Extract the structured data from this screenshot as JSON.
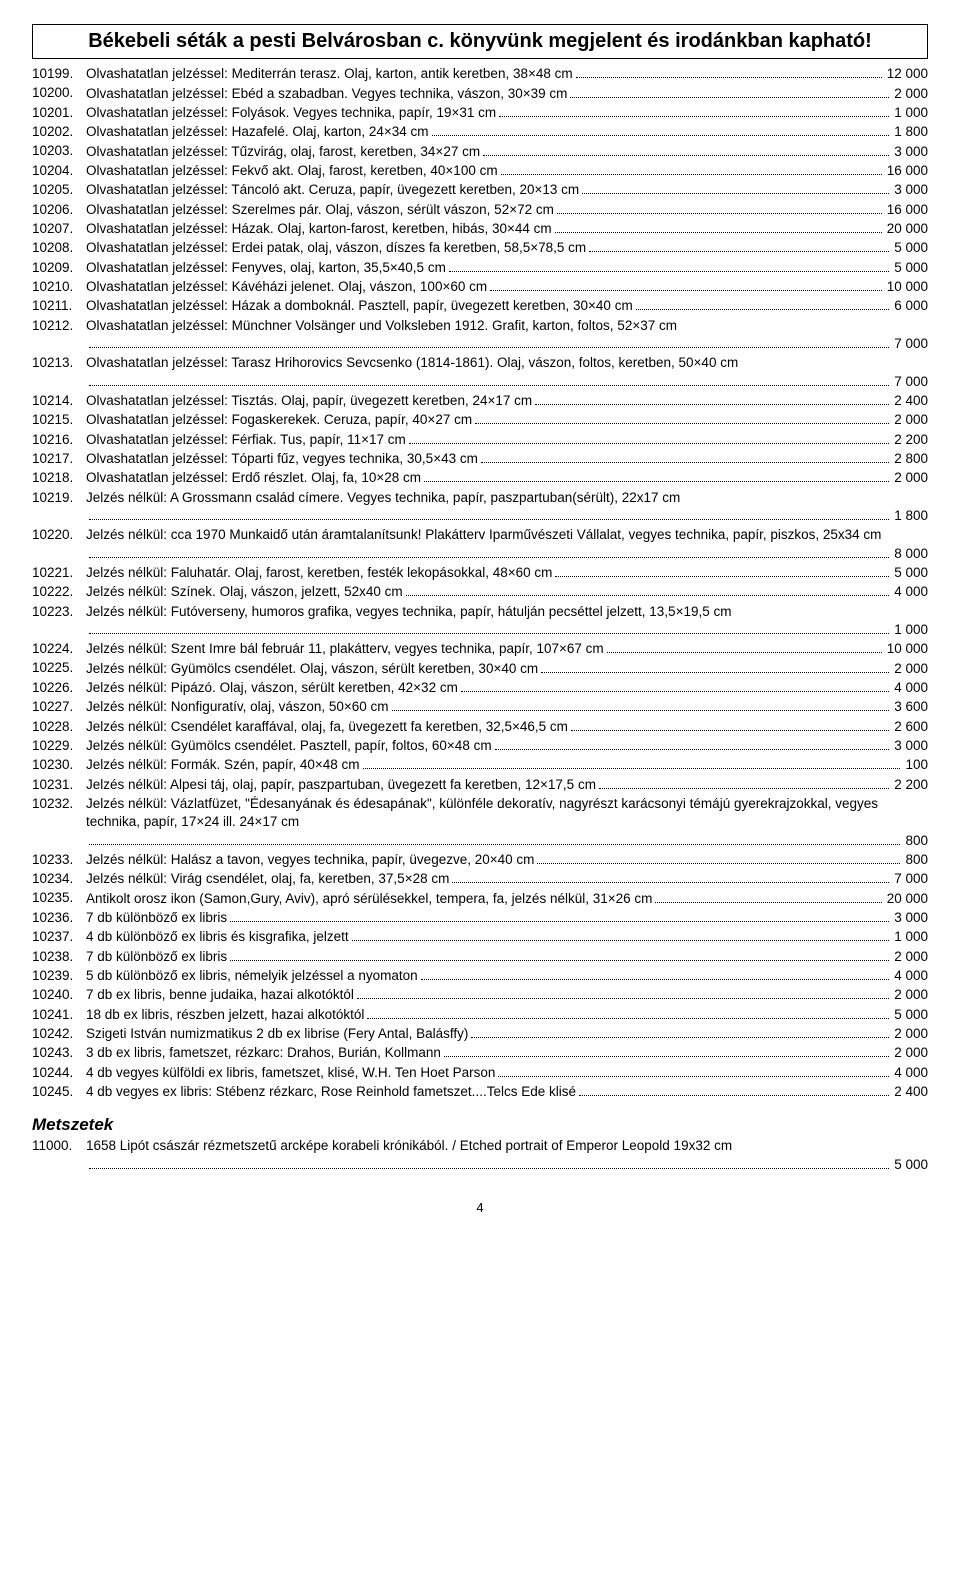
{
  "title": "Békebeli séták a pesti Belvárosban c. könyvünk megjelent és irodánkban kapható!",
  "items": [
    {
      "num": "10199.",
      "desc": "Olvashatatlan jelzéssel: Mediterrán terasz. Olaj, karton, antik keretben, 38×48 cm",
      "price": "12 000"
    },
    {
      "num": "10200.",
      "desc": "Olvashatatlan jelzéssel: Ebéd a szabadban. Vegyes technika, vászon, 30×39 cm",
      "price": "2 000"
    },
    {
      "num": "10201.",
      "desc": "Olvashatatlan jelzéssel: Folyások. Vegyes technika, papír, 19×31 cm",
      "price": "1 000"
    },
    {
      "num": "10202.",
      "desc": "Olvashatatlan jelzéssel: Hazafelé. Olaj, karton, 24×34 cm",
      "price": "1 800"
    },
    {
      "num": "10203.",
      "desc": "Olvashatatlan jelzéssel: Tűzvirág, olaj, farost, keretben, 34×27 cm",
      "price": "3 000"
    },
    {
      "num": "10204.",
      "desc": "Olvashatatlan jelzéssel: Fekvő akt. Olaj, farost, keretben, 40×100 cm",
      "price": "16 000"
    },
    {
      "num": "10205.",
      "desc": "Olvashatatlan jelzéssel: Táncoló akt. Ceruza, papír, üvegezett keretben, 20×13 cm",
      "price": "3 000"
    },
    {
      "num": "10206.",
      "desc": "Olvashatatlan jelzéssel: Szerelmes pár. Olaj, vászon, sérült vászon, 52×72 cm",
      "price": "16 000"
    },
    {
      "num": "10207.",
      "desc": "Olvashatatlan jelzéssel: Házak. Olaj, karton-farost, keretben, hibás, 30×44 cm",
      "price": "20 000"
    },
    {
      "num": "10208.",
      "desc": "Olvashatatlan jelzéssel: Erdei patak, olaj, vászon, díszes fa keretben, 58,5×78,5 cm",
      "price": "5 000"
    },
    {
      "num": "10209.",
      "desc": "Olvashatatlan jelzéssel: Fenyves, olaj, karton, 35,5×40,5 cm",
      "price": "5 000"
    },
    {
      "num": "10210.",
      "desc": "Olvashatatlan jelzéssel: Kávéházi jelenet. Olaj, vászon, 100×60 cm",
      "price": "10 000"
    },
    {
      "num": "10211.",
      "desc": "Olvashatatlan jelzéssel: Házak a domboknál. Pasztell, papír, üvegezett keretben, 30×40 cm",
      "price": "6 000"
    },
    {
      "num": "10212.",
      "desc": "Olvashatatlan jelzéssel: Münchner Volsänger und Volksleben 1912. Grafit, karton, foltos, 52×37 cm",
      "price": "7 000",
      "wrap": true
    },
    {
      "num": "10213.",
      "desc": "Olvashatatlan jelzéssel: Tarasz Hrihorovics Sevcsenko (1814-1861). Olaj, vászon, foltos, keretben, 50×40 cm",
      "price": "7 000",
      "wrap": true
    },
    {
      "num": "10214.",
      "desc": "Olvashatatlan jelzéssel: Tisztás. Olaj, papír, üvegezett keretben, 24×17 cm",
      "price": "2 400"
    },
    {
      "num": "10215.",
      "desc": "Olvashatatlan jelzéssel: Fogaskerekek. Ceruza, papír, 40×27 cm",
      "price": "2 000"
    },
    {
      "num": "10216.",
      "desc": "Olvashatatlan jelzéssel: Férfiak. Tus, papír, 11×17 cm",
      "price": "2 200"
    },
    {
      "num": "10217.",
      "desc": "Olvashatatlan jelzéssel: Tóparti fűz, vegyes technika, 30,5×43 cm",
      "price": "2 800"
    },
    {
      "num": "10218.",
      "desc": "Olvashatatlan jelzéssel: Erdő részlet. Olaj, fa, 10×28 cm",
      "price": "2 000"
    },
    {
      "num": "10219.",
      "desc": "Jelzés nélkül: A Grossmann család címere. Vegyes technika, papír, paszpartuban(sérült), 22x17 cm",
      "price": "1 800",
      "wrap": true
    },
    {
      "num": "10220.",
      "desc": "Jelzés nélkül: cca 1970 Munkaidő után áramtalanítsunk! Plakátterv Iparművészeti Vállalat, vegyes technika, papír, piszkos, 25x34 cm",
      "price": "8 000",
      "wrap": true
    },
    {
      "num": "10221.",
      "desc": "Jelzés nélkül: Faluhatár. Olaj, farost, keretben, festék lekopásokkal, 48×60 cm",
      "price": "5 000"
    },
    {
      "num": "10222.",
      "desc": "Jelzés nélkül: Színek. Olaj, vászon, jelzett, 52x40 cm",
      "price": "4 000"
    },
    {
      "num": "10223.",
      "desc": "Jelzés nélkül: Futóverseny, humoros grafika, vegyes technika, papír, hátulján pecséttel jelzett, 13,5×19,5 cm",
      "price": "1 000",
      "wrap": true
    },
    {
      "num": "10224.",
      "desc": "Jelzés nélkül: Szent Imre bál február 11, plakátterv, vegyes technika, papír, 107×67 cm",
      "price": "10 000"
    },
    {
      "num": "10225.",
      "desc": "Jelzés nélkül: Gyümölcs csendélet. Olaj, vászon, sérült keretben, 30×40 cm",
      "price": "2 000"
    },
    {
      "num": "10226.",
      "desc": "Jelzés nélkül: Pipázó. Olaj, vászon, sérült keretben, 42×32 cm",
      "price": "4 000"
    },
    {
      "num": "10227.",
      "desc": "Jelzés nélkül: Nonfiguratív, olaj, vászon, 50×60 cm",
      "price": "3 600"
    },
    {
      "num": "10228.",
      "desc": "Jelzés nélkül: Csendélet karaffával, olaj, fa, üvegezett fa keretben, 32,5×46,5 cm",
      "price": "2 600"
    },
    {
      "num": "10229.",
      "desc": "Jelzés nélkül: Gyümölcs csendélet. Pasztell, papír, foltos, 60×48 cm",
      "price": "3 000"
    },
    {
      "num": "10230.",
      "desc": "Jelzés nélkül: Formák. Szén, papír, 40×48 cm",
      "price": "100"
    },
    {
      "num": "10231.",
      "desc": "Jelzés nélkül: Alpesi táj, olaj, papír, paszpartuban, üvegezett fa keretben, 12×17,5 cm",
      "price": "2 200"
    },
    {
      "num": "10232.",
      "desc": "Jelzés nélkül: Vázlatfüzet, \"Édesanyának és édesapának\", különféle dekoratív, nagyrészt karácsonyi témájú gyerekrajzokkal, vegyes technika, papír, 17×24 ill. 24×17 cm",
      "price": "800",
      "wrap": true
    },
    {
      "num": "10233.",
      "desc": "Jelzés nélkül: Halász a tavon, vegyes technika, papír, üvegezve, 20×40 cm",
      "price": "800"
    },
    {
      "num": "10234.",
      "desc": "Jelzés nélkül: Virág csendélet, olaj, fa, keretben, 37,5×28 cm",
      "price": "7 000"
    },
    {
      "num": "10235.",
      "desc": "Antikolt orosz ikon (Samon,Gury, Aviv), apró sérülésekkel, tempera, fa, jelzés nélkül, 31×26 cm",
      "price": "20 000"
    },
    {
      "num": "10236.",
      "desc": "7 db különböző ex libris",
      "price": "3 000"
    },
    {
      "num": "10237.",
      "desc": "4 db különböző ex libris és kisgrafika, jelzett",
      "price": "1 000"
    },
    {
      "num": "10238.",
      "desc": "7 db különböző ex libris",
      "price": "2 000"
    },
    {
      "num": "10239.",
      "desc": "5 db különböző ex libris, némelyik jelzéssel a nyomaton",
      "price": "4 000"
    },
    {
      "num": "10240.",
      "desc": "7 db ex libris, benne judaika, hazai alkotóktól",
      "price": "2 000"
    },
    {
      "num": "10241.",
      "desc": "18 db ex libris, részben jelzett, hazai alkotóktól",
      "price": "5 000"
    },
    {
      "num": "10242.",
      "desc": "Szigeti István numizmatikus 2 db ex librise (Fery Antal, Balásffy)",
      "price": "2 000"
    },
    {
      "num": "10243.",
      "desc": "3 db ex libris, fametszet, rézkarc: Drahos, Burián, Kollmann",
      "price": "2 000"
    },
    {
      "num": "10244.",
      "desc": "4 db vegyes külföldi ex libris, fametszet, klisé, W.H. Ten Hoet Parson",
      "price": "4 000"
    },
    {
      "num": "10245.",
      "desc": "4 db vegyes ex libris: Stébenz rézkarc, Rose Reinhold fametszet....Telcs Ede klisé",
      "price": "2 400"
    }
  ],
  "section2": {
    "title": "Metszetek",
    "items": [
      {
        "num": "11000.",
        "desc": "1658 Lipót császár rézmetszetű arcképe korabeli krónikából. / Etched portrait of Emperor Leopold 19x32 cm",
        "price": "5 000",
        "wrap": true
      }
    ]
  },
  "pagenum": "4"
}
